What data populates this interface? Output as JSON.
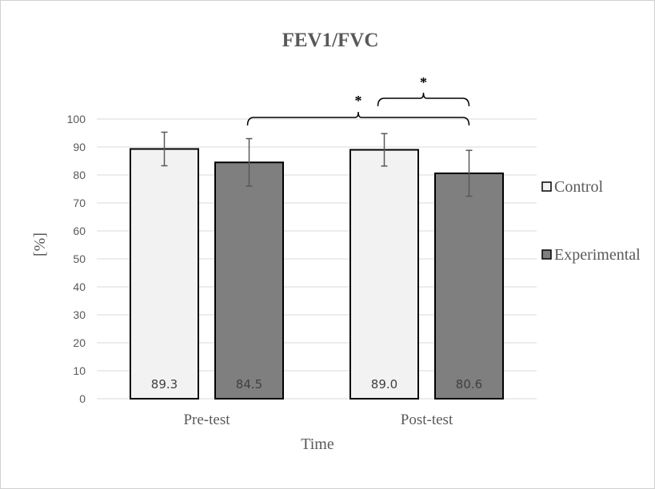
{
  "chart_data": {
    "type": "bar",
    "title": "FEV1/FVC",
    "xlabel": "Time",
    "ylabel": "[%]",
    "ylim": [
      0,
      100
    ],
    "yticks": [
      0,
      10,
      20,
      30,
      40,
      50,
      60,
      70,
      80,
      90,
      100
    ],
    "categories": [
      "Pre-test",
      "Post-test"
    ],
    "series": [
      {
        "name": "Control",
        "values": [
          89.3,
          89.0
        ],
        "error": [
          6.0,
          5.8
        ],
        "labels": [
          "89.3",
          "89.0"
        ],
        "color": "#f2f2f2"
      },
      {
        "name": "Experimental",
        "values": [
          84.5,
          80.6
        ],
        "error": [
          8.5,
          8.2
        ],
        "labels": [
          "84.5",
          "80.6"
        ],
        "color": "#7f7f7f"
      }
    ],
    "grid": true,
    "legend": "right",
    "annotations": [
      {
        "text": "*",
        "from": "Pre-test Experimental",
        "to": "Post-test Experimental"
      },
      {
        "text": "*",
        "from": "Post-test Control",
        "to": "Post-test Experimental"
      }
    ]
  }
}
